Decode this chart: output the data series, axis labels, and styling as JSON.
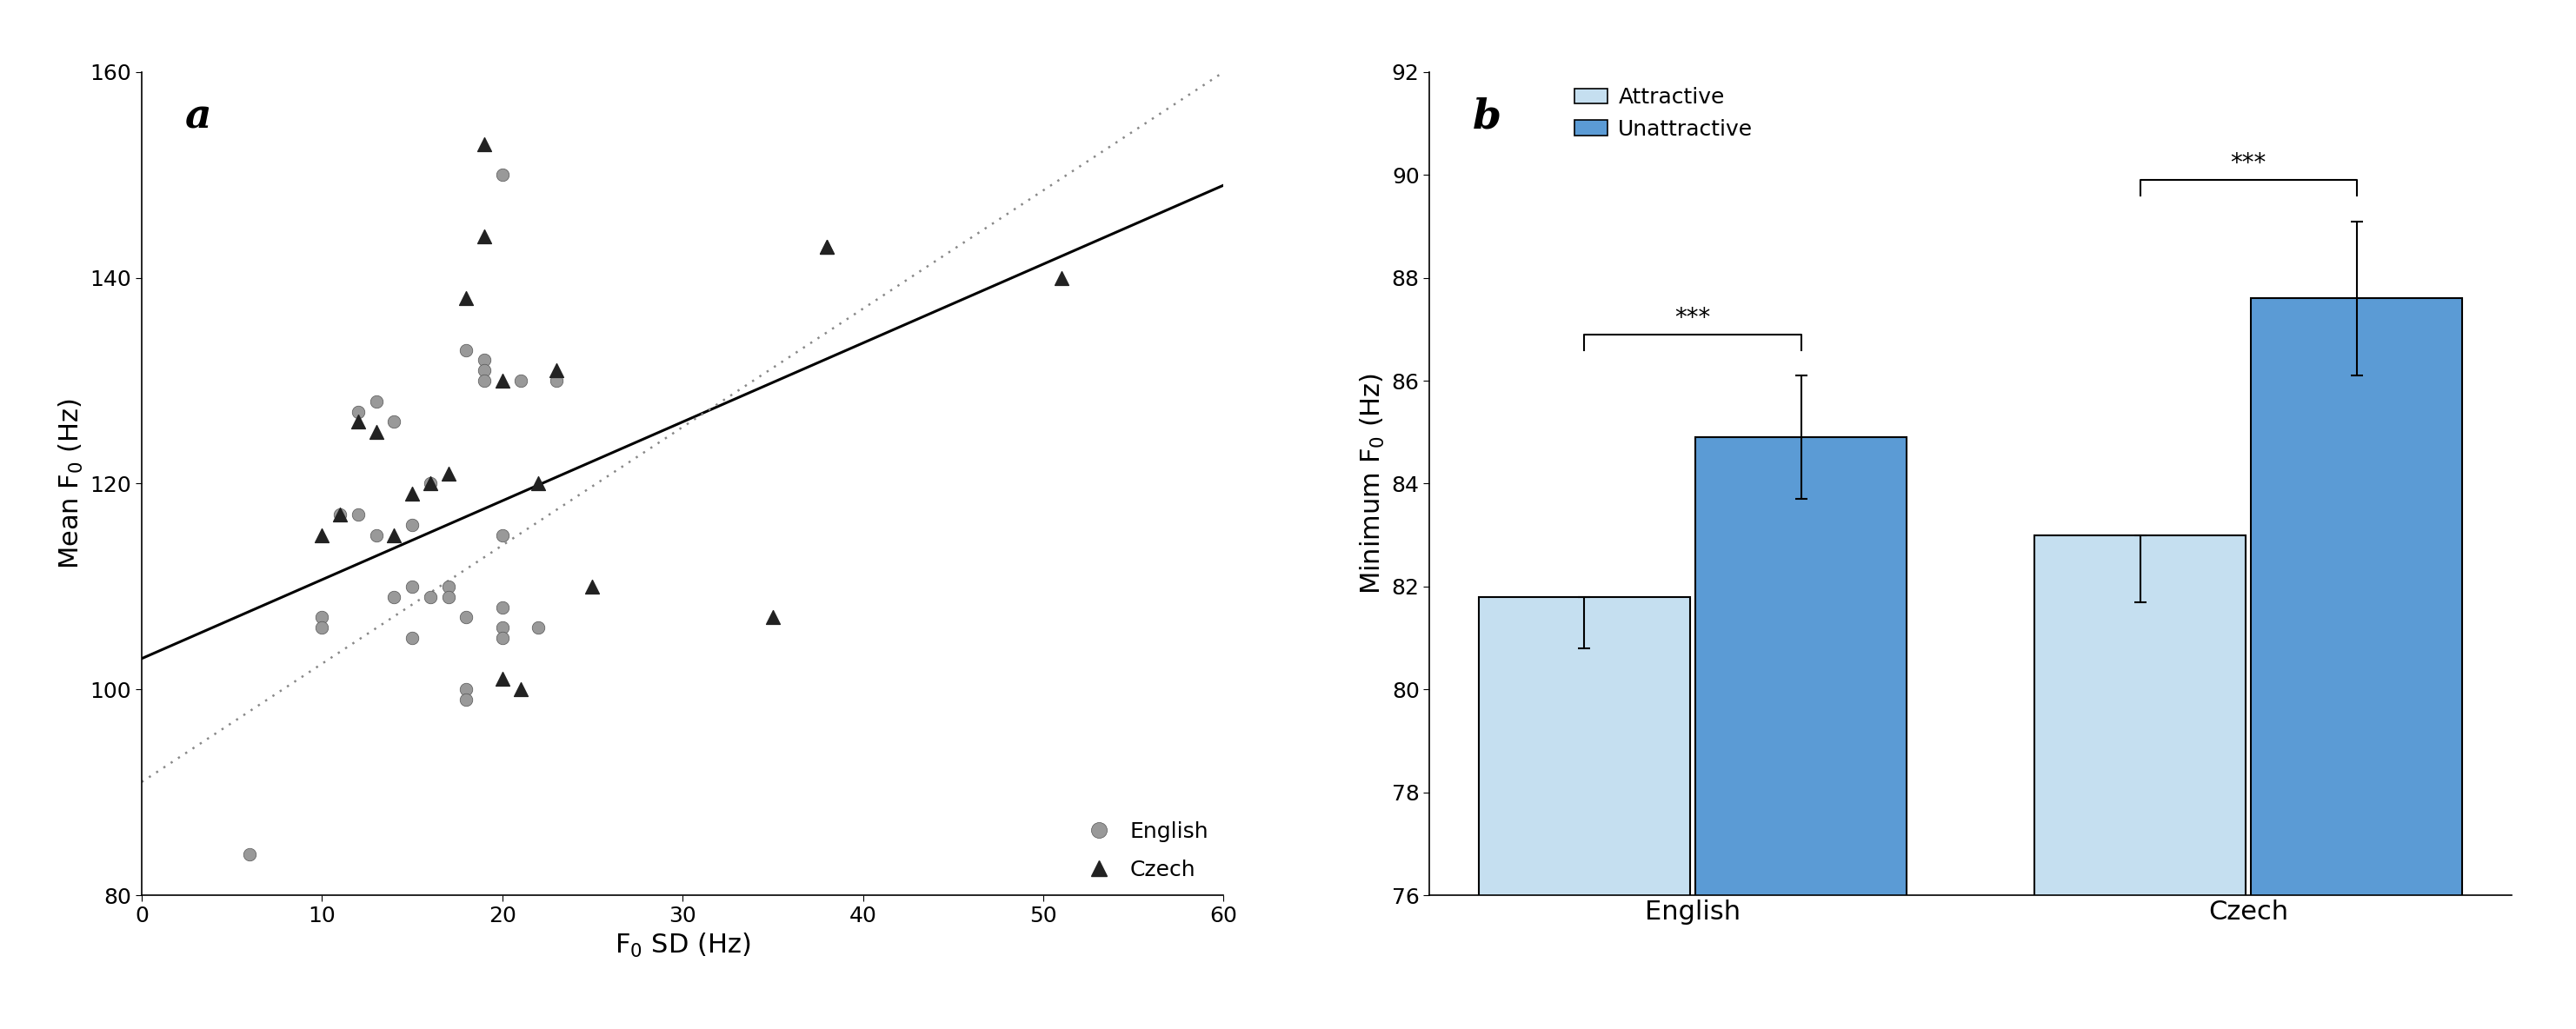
{
  "panel_a_label": "a",
  "panel_b_label": "b",
  "english_x": [
    6,
    10,
    10,
    11,
    12,
    12,
    13,
    13,
    14,
    14,
    15,
    15,
    15,
    16,
    16,
    17,
    17,
    18,
    18,
    18,
    18,
    19,
    19,
    19,
    20,
    20,
    20,
    20,
    20,
    21,
    22,
    23
  ],
  "english_y": [
    84,
    107,
    106,
    117,
    117,
    127,
    115,
    128,
    109,
    126,
    105,
    110,
    116,
    109,
    120,
    110,
    109,
    100,
    99,
    107,
    133,
    132,
    131,
    130,
    115,
    108,
    106,
    105,
    150,
    130,
    106,
    130
  ],
  "czech_x": [
    10,
    11,
    12,
    13,
    14,
    15,
    16,
    17,
    18,
    19,
    19,
    20,
    20,
    21,
    22,
    23,
    25,
    35,
    38,
    38,
    51
  ],
  "czech_y": [
    115,
    117,
    126,
    125,
    115,
    119,
    120,
    121,
    138,
    153,
    144,
    130,
    101,
    100,
    120,
    131,
    110,
    107,
    143,
    143,
    140
  ],
  "solid_line_x": [
    0,
    60
  ],
  "solid_line_y": [
    103,
    149
  ],
  "dotted_line_x": [
    0,
    60
  ],
  "dotted_line_y": [
    91,
    160
  ],
  "xlabel_a": "F$_0$ SD (Hz)",
  "ylabel_a": "Mean F$_0$ (Hz)",
  "xlim_a": [
    0,
    60
  ],
  "ylim_a": [
    80,
    160
  ],
  "xticks_a": [
    0,
    10,
    20,
    30,
    40,
    50,
    60
  ],
  "yticks_a": [
    80,
    100,
    120,
    140,
    160
  ],
  "legend_a_english": "English",
  "legend_a_czech": "Czech",
  "ylabel_b": "Minimum F$_0$ (Hz)",
  "ylim_b": [
    76,
    92
  ],
  "yticks_b": [
    76,
    78,
    80,
    82,
    84,
    86,
    88,
    90,
    92
  ],
  "categories_b": [
    "English",
    "Czech"
  ],
  "attractive_values": [
    81.8,
    83.0
  ],
  "unattractive_values": [
    84.9,
    87.6
  ],
  "attractive_errors_down": [
    1.0,
    1.3
  ],
  "attractive_errors_up": [
    0.0,
    0.0
  ],
  "unattractive_errors_down": [
    1.2,
    1.5
  ],
  "unattractive_errors_up": [
    1.2,
    1.5
  ],
  "attractive_color": "#c5dff0",
  "unattractive_color": "#5b9bd5",
  "bar_edge_color": "#000000",
  "sig_label": "***",
  "english_dot_color": "#999999",
  "czech_triangle_color": "#222222",
  "line_solid_color": "#000000",
  "line_dotted_color": "#888888",
  "eng_sig_y": 87.2,
  "cze_sig_y": 90.3
}
